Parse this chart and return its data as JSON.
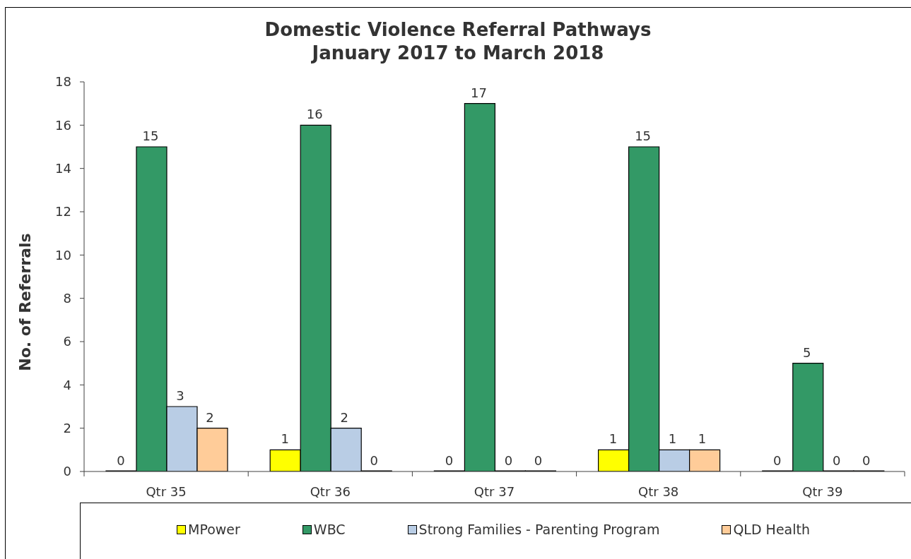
{
  "chart_data": {
    "type": "bar",
    "title": "Domestic Violence Referral Pathways",
    "subtitle": "January 2017 to March 2018",
    "ylabel": "No. of Referrals",
    "categories": [
      "Qtr 35",
      "Qtr 36",
      "Qtr 37",
      "Qtr 38",
      "Qtr 39"
    ],
    "series": [
      {
        "name": "MPower",
        "color": "#ffff00",
        "values": [
          0,
          1,
          0,
          1,
          0
        ]
      },
      {
        "name": "WBC",
        "color": "#339966",
        "values": [
          15,
          16,
          17,
          15,
          5
        ]
      },
      {
        "name": "Strong Families - Parenting Program",
        "color": "#b9cde5",
        "values": [
          3,
          2,
          0,
          1,
          0
        ]
      },
      {
        "name": "QLD Health",
        "color": "#ffcc99",
        "values": [
          2,
          0,
          0,
          1,
          0
        ]
      }
    ],
    "ylim": [
      0,
      18
    ],
    "yticks": [
      0,
      2,
      4,
      6,
      8,
      10,
      12,
      14,
      16,
      18
    ],
    "data_labels": true,
    "legend": "bottom"
  }
}
